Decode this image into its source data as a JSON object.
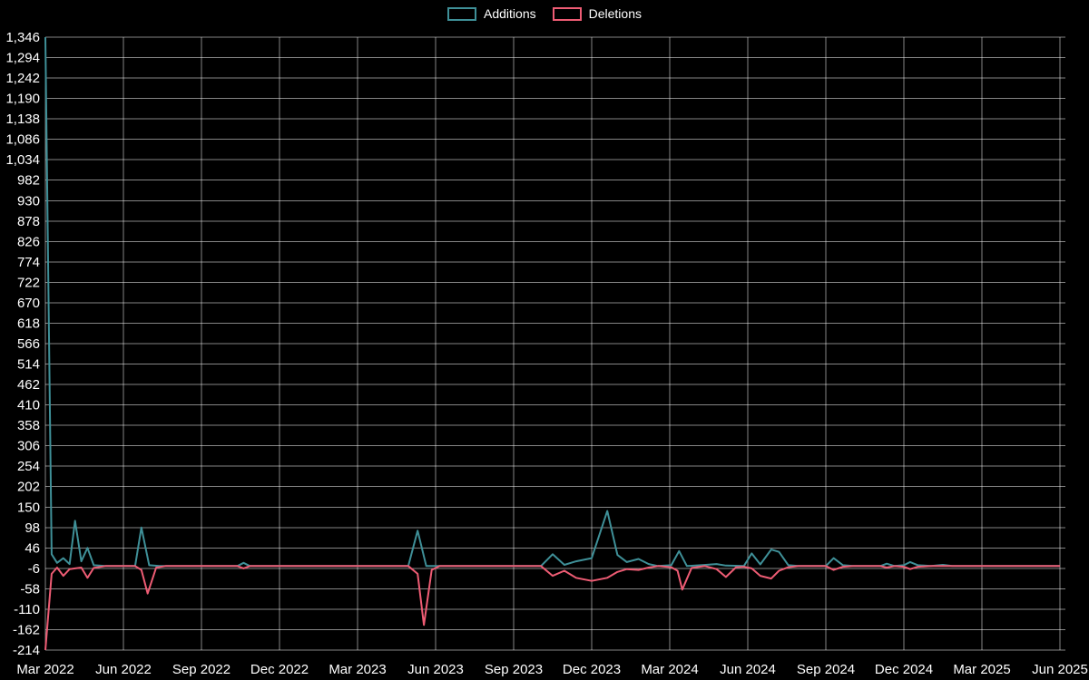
{
  "page": {
    "background": "#000000",
    "text_color": "#ffffff",
    "grid_color": "rgba(255,255,255,0.52)"
  },
  "chart_data": {
    "type": "line",
    "title": "",
    "xlabel": "",
    "ylabel": "",
    "grid": true,
    "legend_position": "top-center",
    "xlim": [
      0,
      13
    ],
    "ylim": [
      -214,
      1346
    ],
    "x_tick_labels": [
      "Mar 2022",
      "Jun 2022",
      "Sep 2022",
      "Dec 2022",
      "Mar 2023",
      "Jun 2023",
      "Sep 2023",
      "Dec 2023",
      "Mar 2024",
      "Jun 2024",
      "Sep 2024",
      "Dec 2024",
      "Mar 2025",
      "Jun 2025"
    ],
    "y_ticks": [
      -214,
      -162,
      -110,
      -58,
      -6,
      46,
      98,
      150,
      202,
      254,
      306,
      358,
      410,
      462,
      514,
      566,
      618,
      670,
      722,
      774,
      826,
      878,
      930,
      982,
      1034,
      1086,
      1138,
      1190,
      1242,
      1294,
      1346
    ],
    "series": [
      {
        "name": "Additions",
        "color": "#3f9098",
        "points": [
          [
            0,
            1346
          ],
          [
            0.08,
            30
          ],
          [
            0.15,
            8
          ],
          [
            0.23,
            20
          ],
          [
            0.31,
            5
          ],
          [
            0.38,
            115
          ],
          [
            0.46,
            12
          ],
          [
            0.54,
            46
          ],
          [
            0.62,
            2
          ],
          [
            0.77,
            0
          ],
          [
            1.15,
            0
          ],
          [
            1.23,
            98
          ],
          [
            1.33,
            2
          ],
          [
            1.46,
            0
          ],
          [
            2.46,
            0
          ],
          [
            2.54,
            8
          ],
          [
            2.62,
            0
          ],
          [
            4.65,
            0
          ],
          [
            4.77,
            90
          ],
          [
            4.88,
            0
          ],
          [
            6.35,
            0
          ],
          [
            6.5,
            30
          ],
          [
            6.65,
            3
          ],
          [
            6.8,
            12
          ],
          [
            7.0,
            20
          ],
          [
            7.2,
            140
          ],
          [
            7.33,
            28
          ],
          [
            7.45,
            10
          ],
          [
            7.6,
            18
          ],
          [
            7.73,
            5
          ],
          [
            7.85,
            0
          ],
          [
            8.02,
            2
          ],
          [
            8.12,
            38
          ],
          [
            8.22,
            0
          ],
          [
            8.4,
            2
          ],
          [
            8.6,
            5
          ],
          [
            8.72,
            1
          ],
          [
            8.95,
            0
          ],
          [
            9.05,
            32
          ],
          [
            9.16,
            4
          ],
          [
            9.3,
            42
          ],
          [
            9.4,
            36
          ],
          [
            9.52,
            2
          ],
          [
            9.65,
            0
          ],
          [
            10.0,
            0
          ],
          [
            10.1,
            20
          ],
          [
            10.22,
            2
          ],
          [
            10.35,
            0
          ],
          [
            10.7,
            0
          ],
          [
            10.78,
            6
          ],
          [
            10.88,
            0
          ],
          [
            11.0,
            2
          ],
          [
            11.08,
            10
          ],
          [
            11.18,
            2
          ],
          [
            11.35,
            0
          ],
          [
            11.5,
            3
          ],
          [
            11.62,
            0
          ],
          [
            13,
            0
          ]
        ]
      },
      {
        "name": "Deletions",
        "color": "#ee5c74",
        "points": [
          [
            0,
            -214
          ],
          [
            0.08,
            -20
          ],
          [
            0.15,
            -4
          ],
          [
            0.23,
            -25
          ],
          [
            0.31,
            -8
          ],
          [
            0.38,
            -6
          ],
          [
            0.46,
            -4
          ],
          [
            0.54,
            -30
          ],
          [
            0.62,
            -5
          ],
          [
            0.77,
            0
          ],
          [
            1.15,
            0
          ],
          [
            1.23,
            -10
          ],
          [
            1.31,
            -70
          ],
          [
            1.42,
            -4
          ],
          [
            1.54,
            0
          ],
          [
            2.46,
            0
          ],
          [
            2.54,
            -6
          ],
          [
            2.62,
            0
          ],
          [
            4.65,
            0
          ],
          [
            4.77,
            -20
          ],
          [
            4.85,
            -150
          ],
          [
            4.95,
            -10
          ],
          [
            5.05,
            0
          ],
          [
            6.35,
            0
          ],
          [
            6.5,
            -25
          ],
          [
            6.65,
            -12
          ],
          [
            6.8,
            -30
          ],
          [
            7.0,
            -38
          ],
          [
            7.2,
            -30
          ],
          [
            7.33,
            -15
          ],
          [
            7.45,
            -8
          ],
          [
            7.6,
            -10
          ],
          [
            7.73,
            -4
          ],
          [
            7.85,
            0
          ],
          [
            8.02,
            -3
          ],
          [
            8.1,
            -12
          ],
          [
            8.16,
            -60
          ],
          [
            8.28,
            -5
          ],
          [
            8.45,
            0
          ],
          [
            8.6,
            -8
          ],
          [
            8.72,
            -28
          ],
          [
            8.85,
            -3
          ],
          [
            8.95,
            -2
          ],
          [
            9.05,
            -6
          ],
          [
            9.16,
            -25
          ],
          [
            9.3,
            -32
          ],
          [
            9.4,
            -12
          ],
          [
            9.52,
            -3
          ],
          [
            9.65,
            0
          ],
          [
            10.0,
            0
          ],
          [
            10.1,
            -10
          ],
          [
            10.22,
            -2
          ],
          [
            10.35,
            0
          ],
          [
            10.7,
            0
          ],
          [
            10.78,
            -4
          ],
          [
            10.88,
            0
          ],
          [
            11.0,
            -2
          ],
          [
            11.08,
            -8
          ],
          [
            11.18,
            -2
          ],
          [
            11.35,
            0
          ],
          [
            13,
            0
          ]
        ]
      }
    ]
  }
}
